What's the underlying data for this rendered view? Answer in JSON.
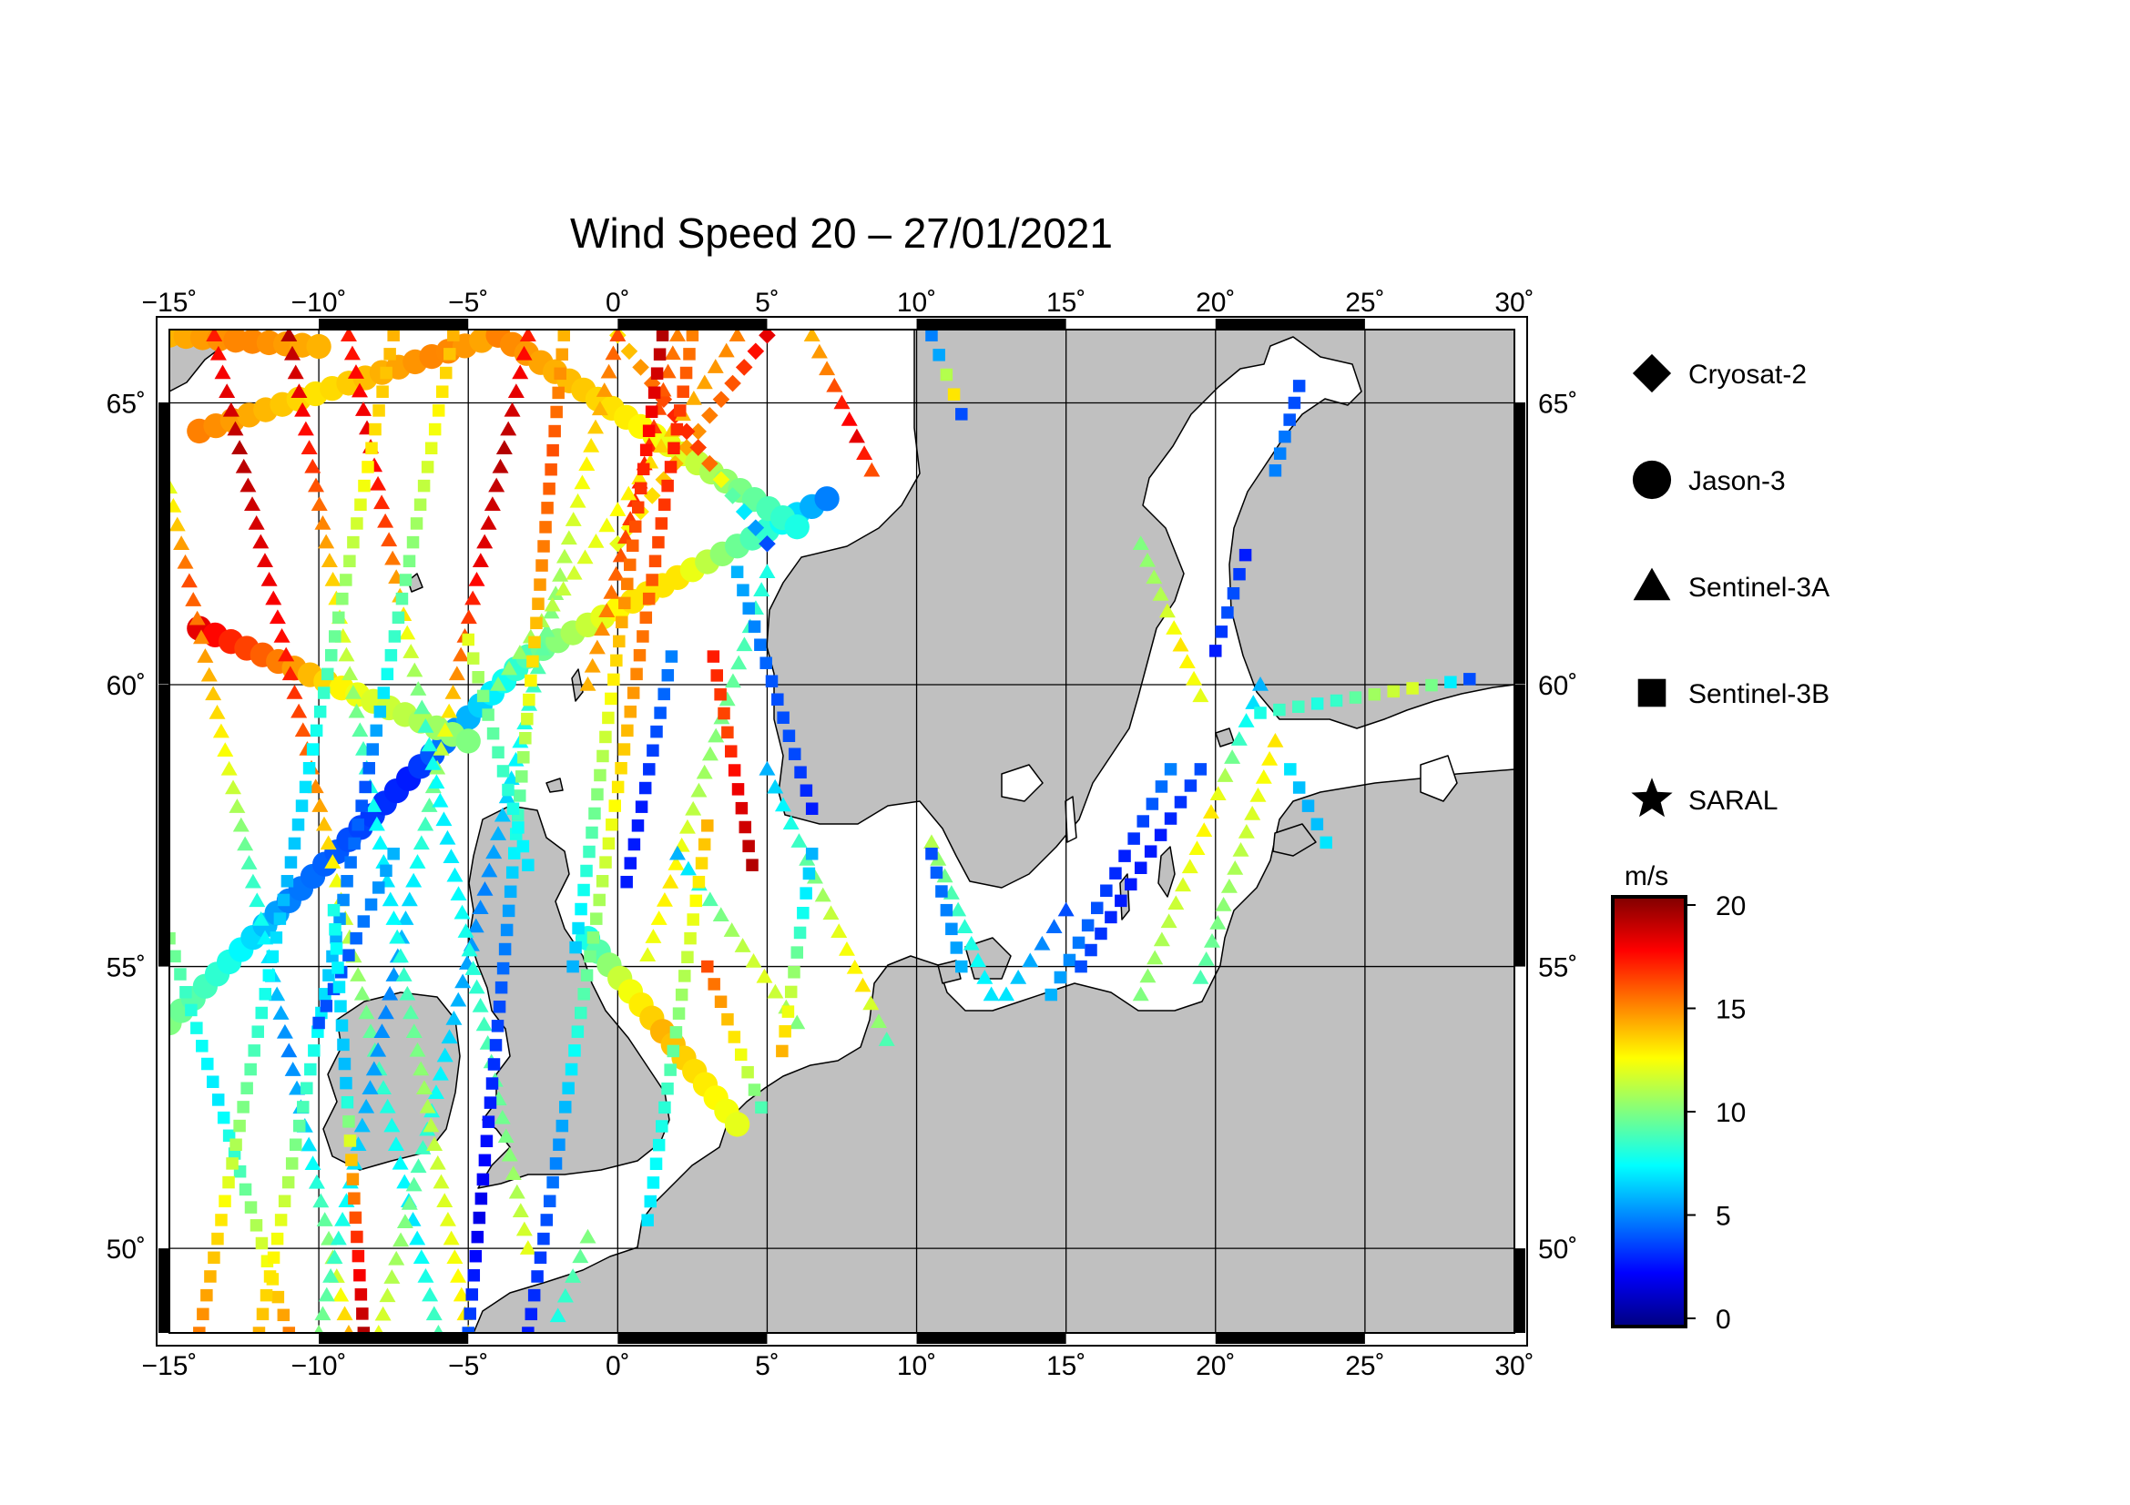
{
  "title": "Wind Speed 20 – 27/01/2021",
  "map": {
    "lon_range": [
      -15,
      30
    ],
    "lat_range": [
      48.5,
      66.3
    ],
    "land_color": "#c0c0c0",
    "sea_color": "#ffffff",
    "grid": true,
    "lon_tick_labels": [
      "−15˚",
      "−10˚",
      "−5˚",
      "0˚",
      "5˚",
      "10˚",
      "15˚",
      "20˚",
      "25˚",
      "30˚"
    ],
    "lat_tick_labels": [
      "50˚",
      "55˚",
      "60˚",
      "65˚"
    ]
  },
  "legend": [
    {
      "label": "Cryosat-2",
      "symbol": "diamond-icon"
    },
    {
      "label": "Jason-3",
      "symbol": "circle-icon"
    },
    {
      "label": "Sentinel-3A",
      "symbol": "triangle-icon"
    },
    {
      "label": "Sentinel-3B",
      "symbol": "square-icon"
    },
    {
      "label": "SARAL",
      "symbol": "star-icon"
    }
  ],
  "colorbar": {
    "unit": "m/s",
    "range": [
      0,
      20
    ],
    "ticks": [
      "0",
      "5",
      "10",
      "15",
      "20"
    ],
    "colors": [
      "#000080",
      "#0000ff",
      "#0080ff",
      "#00ffff",
      "#80ff80",
      "#ffff00",
      "#ff8000",
      "#ff0000",
      "#800000"
    ]
  },
  "tracks": [
    {
      "satellite": "Jason-3",
      "start": [
        -15,
        54.0
      ],
      "end": [
        -3,
        60.5
      ],
      "wind": [
        10,
        8,
        5,
        4,
        3,
        6,
        9
      ]
    },
    {
      "satellite": "Jason-3",
      "start": [
        -3,
        60.5
      ],
      "end": [
        7,
        63.3
      ],
      "wind": [
        9,
        11,
        13,
        13,
        10,
        8,
        5
      ]
    },
    {
      "satellite": "Jason-3",
      "start": [
        -14,
        61.0
      ],
      "end": [
        -5,
        59.0
      ],
      "wind": [
        18,
        16,
        14,
        12,
        11,
        10
      ]
    },
    {
      "satellite": "Jason-3",
      "start": [
        -14,
        64.5
      ],
      "end": [
        -4,
        66.2
      ],
      "wind": [
        15,
        14,
        13,
        14,
        15,
        14
      ]
    },
    {
      "satellite": "Jason-3",
      "start": [
        -4,
        66.2
      ],
      "end": [
        6,
        62.8
      ],
      "wind": [
        15,
        14,
        13,
        12,
        10,
        8
      ]
    },
    {
      "satellite": "Jason-3",
      "start": [
        -15,
        66.2
      ],
      "end": [
        -10,
        66.0
      ],
      "wind": [
        14,
        15,
        14
      ]
    },
    {
      "satellite": "Jason-3",
      "start": [
        -1,
        55.5
      ],
      "end": [
        4,
        52.2
      ],
      "wind": [
        8,
        12,
        14,
        13,
        12
      ]
    },
    {
      "satellite": "Cryosat-2",
      "start": [
        0,
        62.5
      ],
      "end": [
        5,
        66.2
      ],
      "wind": [
        12,
        13,
        14,
        15,
        16,
        18
      ]
    },
    {
      "satellite": "Cryosat-2",
      "start": [
        0,
        66.2
      ],
      "end": [
        5,
        62.5
      ],
      "wind": [
        13,
        15,
        17,
        16,
        8,
        4
      ]
    },
    {
      "satellite": "Sentinel-3A",
      "start": [
        -15,
        63.5
      ],
      "end": [
        -9,
        48.5
      ],
      "wind": [
        12,
        16,
        14,
        12,
        9,
        7,
        5,
        7,
        10,
        14
      ]
    },
    {
      "satellite": "Sentinel-3A",
      "start": [
        -13.5,
        66.2
      ],
      "end": [
        -6,
        48.5
      ],
      "wind": [
        17,
        19,
        18,
        17,
        15,
        12,
        10,
        8,
        7,
        9
      ]
    },
    {
      "satellite": "Sentinel-3A",
      "start": [
        -10,
        48.5
      ],
      "end": [
        -3,
        66.2
      ],
      "wind": [
        10,
        8,
        6,
        5,
        7,
        10,
        15,
        18,
        19,
        17
      ]
    },
    {
      "satellite": "Sentinel-3A",
      "start": [
        -8,
        48.5
      ],
      "end": [
        0,
        66.2
      ],
      "wind": [
        12,
        10,
        8,
        6,
        5,
        7,
        9,
        11,
        13,
        16
      ]
    },
    {
      "satellite": "Sentinel-3A",
      "start": [
        -5,
        48.5
      ],
      "end": [
        -11,
        66.2
      ],
      "wind": [
        13,
        12,
        11,
        9,
        7,
        8,
        11,
        14,
        17,
        19
      ]
    },
    {
      "satellite": "Sentinel-3A",
      "start": [
        -3,
        50.0
      ],
      "end": [
        -9,
        66.2
      ],
      "wind": [
        12,
        10,
        9,
        8,
        7,
        8,
        12,
        16,
        18,
        17
      ]
    },
    {
      "satellite": "Sentinel-3A",
      "start": [
        -1,
        60.0
      ],
      "end": [
        2,
        66.2
      ],
      "wind": [
        14,
        15,
        16,
        17,
        16,
        15
      ]
    },
    {
      "satellite": "Sentinel-3A",
      "start": [
        -4,
        60.0
      ],
      "end": [
        4,
        66.2
      ],
      "wind": [
        10,
        11,
        12,
        13,
        14,
        15
      ]
    },
    {
      "satellite": "Sentinel-3A",
      "start": [
        1,
        55.2
      ],
      "end": [
        5,
        62.0
      ],
      "wind": [
        12,
        13,
        11,
        10,
        9,
        8
      ]
    },
    {
      "satellite": "Sentinel-3A",
      "start": [
        2,
        57.0
      ],
      "end": [
        6,
        54.0
      ],
      "wind": [
        6,
        9,
        11,
        12,
        10
      ]
    },
    {
      "satellite": "Sentinel-3A",
      "start": [
        5,
        58.5
      ],
      "end": [
        9,
        53.7
      ],
      "wind": [
        6,
        8,
        10,
        12,
        13,
        9
      ]
    },
    {
      "satellite": "Sentinel-3A",
      "start": [
        6.5,
        66.2
      ],
      "end": [
        8.5,
        63.8
      ],
      "wind": [
        14,
        15,
        17,
        18,
        16
      ]
    },
    {
      "satellite": "Sentinel-3A",
      "start": [
        10.5,
        57.2
      ],
      "end": [
        12.5,
        54.5
      ],
      "wind": [
        11,
        9,
        8,
        7
      ]
    },
    {
      "satellite": "Sentinel-3A",
      "start": [
        13,
        54.5
      ],
      "end": [
        15,
        56.0
      ],
      "wind": [
        7,
        6,
        5,
        4
      ]
    },
    {
      "satellite": "Sentinel-3A",
      "start": [
        17.5,
        62.5
      ],
      "end": [
        19.5,
        59.8
      ],
      "wind": [
        10,
        11,
        13,
        12
      ]
    },
    {
      "satellite": "Sentinel-3A",
      "start": [
        17.5,
        54.5
      ],
      "end": [
        21.5,
        60.0
      ],
      "wind": [
        10,
        11,
        12,
        13,
        9,
        6
      ]
    },
    {
      "satellite": "Sentinel-3A",
      "start": [
        19.5,
        54.8
      ],
      "end": [
        22,
        59.0
      ],
      "wind": [
        9,
        10,
        11,
        12,
        13
      ]
    },
    {
      "satellite": "Sentinel-3A",
      "start": [
        -2,
        48.8
      ],
      "end": [
        -1,
        50.2
      ],
      "wind": [
        8,
        9,
        10
      ]
    },
    {
      "satellite": "Sentinel-3B",
      "start": [
        -15,
        55.5
      ],
      "end": [
        -11,
        48.5
      ],
      "wind": [
        10,
        8,
        7,
        9,
        12,
        15
      ]
    },
    {
      "satellite": "Sentinel-3B",
      "start": [
        -14,
        48.5
      ],
      "end": [
        -7.5,
        66.2
      ],
      "wind": [
        15,
        13,
        10,
        8,
        6,
        7,
        9,
        11,
        13,
        14
      ]
    },
    {
      "satellite": "Sentinel-3B",
      "start": [
        -12,
        48.5
      ],
      "end": [
        -5.5,
        66.2
      ],
      "wind": [
        14,
        12,
        9,
        7,
        5,
        4,
        8,
        10,
        12,
        14
      ]
    },
    {
      "satellite": "Sentinel-3B",
      "start": [
        -10,
        54.0
      ],
      "end": [
        -7.5,
        57.0
      ],
      "wind": [
        4,
        4,
        5,
        6
      ]
    },
    {
      "satellite": "Sentinel-3B",
      "start": [
        -9.5,
        56.0
      ],
      "end": [
        -8.5,
        48.5
      ],
      "wind": [
        8,
        7,
        6,
        14,
        17,
        19
      ]
    },
    {
      "satellite": "Sentinel-3B",
      "start": [
        -5,
        48.5
      ],
      "end": [
        -1.8,
        66.2
      ],
      "wind": [
        4,
        2,
        3,
        4,
        6,
        10,
        13,
        15,
        16,
        14
      ]
    },
    {
      "satellite": "Sentinel-3B",
      "start": [
        -3,
        48.5
      ],
      "end": [
        2.5,
        66.2
      ],
      "wind": [
        3,
        4,
        6,
        9,
        11,
        13,
        15,
        16,
        17,
        15
      ]
    },
    {
      "satellite": "Sentinel-3B",
      "start": [
        -1.5,
        55.0
      ],
      "end": [
        1.5,
        66.2
      ],
      "wind": [
        6,
        9,
        12,
        15,
        17,
        19
      ]
    },
    {
      "satellite": "Sentinel-3B",
      "start": [
        1,
        50.5
      ],
      "end": [
        3,
        57.5
      ],
      "wind": [
        7,
        8,
        10,
        12,
        14
      ]
    },
    {
      "satellite": "Sentinel-3B",
      "start": [
        0.3,
        56.5
      ],
      "end": [
        1.8,
        60.5
      ],
      "wind": [
        3,
        3,
        4,
        5
      ]
    },
    {
      "satellite": "Sentinel-3B",
      "start": [
        3,
        55.0
      ],
      "end": [
        4.8,
        52.5
      ],
      "wind": [
        16,
        14,
        12,
        9
      ]
    },
    {
      "satellite": "Sentinel-3B",
      "start": [
        4,
        62.0
      ],
      "end": [
        6.5,
        57.8
      ],
      "wind": [
        6,
        5,
        4,
        4,
        3
      ]
    },
    {
      "satellite": "Sentinel-3B",
      "start": [
        5.5,
        53.5
      ],
      "end": [
        6.5,
        57.0
      ],
      "wind": [
        14,
        11,
        8,
        6
      ]
    },
    {
      "satellite": "Sentinel-3B",
      "start": [
        3.2,
        60.5
      ],
      "end": [
        4.5,
        56.8
      ],
      "wind": [
        17,
        16,
        18,
        19
      ]
    },
    {
      "satellite": "Sentinel-3B",
      "start": [
        -5,
        60.8
      ],
      "end": [
        -3,
        56.8
      ],
      "wind": [
        12,
        10,
        9,
        8,
        7
      ]
    },
    {
      "satellite": "Sentinel-3B",
      "start": [
        10.5,
        66.2
      ],
      "end": [
        11.5,
        64.8
      ],
      "wind": [
        5,
        6,
        16,
        4
      ]
    },
    {
      "satellite": "Sentinel-3B",
      "start": [
        10.5,
        57.0
      ],
      "end": [
        11.5,
        55.0
      ],
      "wind": [
        4,
        5,
        6
      ]
    },
    {
      "satellite": "Sentinel-3B",
      "start": [
        14.5,
        54.5
      ],
      "end": [
        18.5,
        58.5
      ],
      "wind": [
        6,
        5,
        4,
        3,
        4,
        5
      ]
    },
    {
      "satellite": "Sentinel-3B",
      "start": [
        15.5,
        55.0
      ],
      "end": [
        19.5,
        58.5
      ],
      "wind": [
        4,
        3,
        3,
        4
      ]
    },
    {
      "satellite": "Sentinel-3B",
      "start": [
        20,
        60.6
      ],
      "end": [
        21,
        62.3
      ],
      "wind": [
        3,
        4,
        4,
        3
      ]
    },
    {
      "satellite": "Sentinel-3B",
      "start": [
        22.8,
        65.3
      ],
      "end": [
        22.0,
        63.8
      ],
      "wind": [
        4,
        4,
        5,
        5
      ]
    },
    {
      "satellite": "Sentinel-3B",
      "start": [
        21.5,
        59.5
      ],
      "end": [
        28.5,
        60.1
      ],
      "wind": [
        8,
        9,
        8,
        9,
        11,
        12,
        9,
        4
      ]
    },
    {
      "satellite": "Sentinel-3B",
      "start": [
        22.5,
        58.5
      ],
      "end": [
        23.7,
        57.2
      ],
      "wind": [
        7,
        6,
        6,
        7
      ]
    }
  ]
}
